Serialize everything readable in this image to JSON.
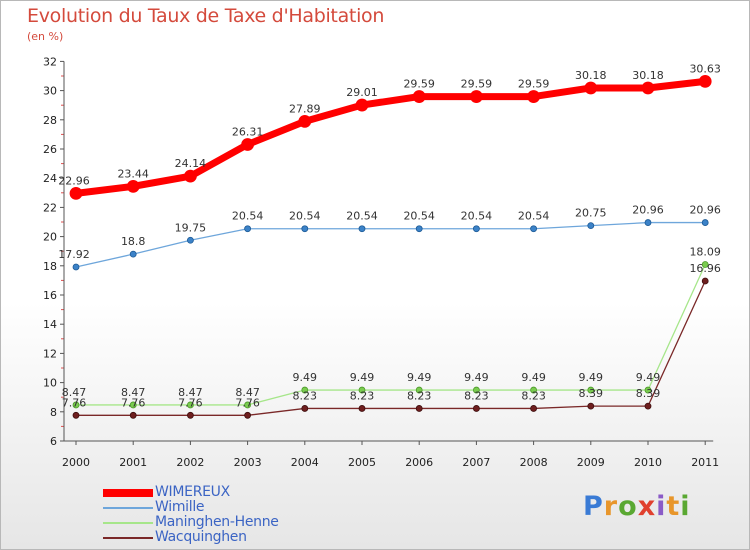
{
  "title": "Evolution du Taux de Taxe d'Habitation",
  "unit_label": "(en %)",
  "logo": {
    "text": "Proxiti",
    "letter_colors": [
      "#3a7bd5",
      "#e8962b",
      "#5aa832",
      "#e0402e",
      "#8a5bc7",
      "#e8962b",
      "#5aa832"
    ]
  },
  "chart_data": {
    "type": "line",
    "title": "Evolution du Taux de Taxe d'Habitation",
    "ylabel": "(en %)",
    "xlabel": "",
    "categories": [
      "2000",
      "2001",
      "2002",
      "2003",
      "2004",
      "2005",
      "2006",
      "2007",
      "2008",
      "2009",
      "2010",
      "2011"
    ],
    "ylim": [
      6,
      32
    ],
    "yticks": [
      6,
      8,
      10,
      12,
      14,
      16,
      18,
      20,
      22,
      24,
      26,
      28,
      30,
      32
    ],
    "grid": false,
    "legend_position": "bottom-left",
    "series": [
      {
        "name": "WIMEREUX",
        "color": "#ff0000",
        "values": [
          22.96,
          23.44,
          24.14,
          26.31,
          27.89,
          29.01,
          29.59,
          29.59,
          29.59,
          30.18,
          30.18,
          30.63
        ],
        "labels": [
          "22.96",
          "23.44",
          "24.14",
          "26.31",
          "27.89",
          "29.01",
          "29.59",
          "29.59",
          "29.59",
          "30.18",
          "30.18",
          "30.63"
        ]
      },
      {
        "name": "Wimille",
        "color": "#5b9bd5",
        "values": [
          17.92,
          18.8,
          19.75,
          20.54,
          20.54,
          20.54,
          20.54,
          20.54,
          20.54,
          20.75,
          20.96,
          20.96
        ],
        "labels": [
          "17.92",
          "18.8",
          "19.75",
          "20.54",
          "20.54",
          "20.54",
          "20.54",
          "20.54",
          "20.54",
          "20.75",
          "20.96",
          "20.96"
        ]
      },
      {
        "name": "Maninghen-Henne",
        "color": "#99e07a",
        "values": [
          8.47,
          8.47,
          8.47,
          8.47,
          9.49,
          9.49,
          9.49,
          9.49,
          9.49,
          9.49,
          9.49,
          18.09
        ],
        "labels": [
          "8.47",
          "8.47",
          "8.47",
          "8.47",
          "9.49",
          "9.49",
          "9.49",
          "9.49",
          "9.49",
          "9.49",
          "9.49",
          "18.09"
        ]
      },
      {
        "name": "Wacquinghen",
        "color": "#7a2828",
        "values": [
          7.76,
          7.76,
          7.76,
          7.76,
          8.23,
          8.23,
          8.23,
          8.23,
          8.23,
          8.39,
          8.39,
          16.96
        ],
        "labels": [
          "7.76",
          "7.76",
          "7.76",
          "7.76",
          "8.23",
          "8.23",
          "8.23",
          "8.23",
          "8.23",
          "8.39",
          "8.39",
          "16.96"
        ]
      }
    ]
  }
}
